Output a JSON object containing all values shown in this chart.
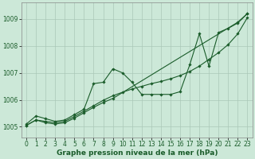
{
  "bg_color": "#cce8d8",
  "grid_color": "#aac8b8",
  "line_color": "#1a5c2a",
  "marker_color": "#1a5c2a",
  "xlabel": "Graphe pression niveau de la mer (hPa)",
  "xlabel_fontsize": 6.5,
  "tick_fontsize": 5.5,
  "xlim": [
    -0.5,
    23.5
  ],
  "ylim": [
    1004.6,
    1009.6
  ],
  "yticks": [
    1005,
    1006,
    1007,
    1008,
    1009
  ],
  "xticks": [
    0,
    1,
    2,
    3,
    4,
    5,
    6,
    7,
    8,
    9,
    10,
    11,
    12,
    13,
    14,
    15,
    16,
    17,
    18,
    19,
    20,
    21,
    22,
    23
  ],
  "series1_x": [
    0,
    1,
    2,
    3,
    4,
    5,
    6,
    7,
    8,
    9,
    10,
    11,
    12,
    13,
    14,
    15,
    16,
    17,
    18,
    19,
    20,
    21,
    22,
    23
  ],
  "series1_y": [
    1005.1,
    1005.4,
    1005.3,
    1005.2,
    1005.25,
    1005.45,
    1005.65,
    1006.6,
    1006.65,
    1007.15,
    1007.0,
    1006.65,
    1006.2,
    1006.2,
    1006.2,
    1006.2,
    1006.3,
    1007.3,
    1008.45,
    1007.25,
    1008.5,
    1008.65,
    1008.85,
    1009.2
  ],
  "series2_x": [
    0,
    1,
    2,
    3,
    4,
    5,
    6,
    7,
    8,
    9,
    10,
    11,
    12,
    13,
    14,
    15,
    16,
    17,
    18,
    19,
    20,
    21,
    22,
    23
  ],
  "series2_y": [
    1005.05,
    1005.25,
    1005.2,
    1005.15,
    1005.2,
    1005.38,
    1005.58,
    1005.78,
    1005.98,
    1006.15,
    1006.28,
    1006.4,
    1006.5,
    1006.6,
    1006.68,
    1006.78,
    1006.9,
    1007.05,
    1007.25,
    1007.5,
    1007.75,
    1008.05,
    1008.45,
    1009.05
  ],
  "series3_x": [
    0,
    1,
    2,
    3,
    4,
    5,
    6,
    7,
    8,
    9,
    22,
    23
  ],
  "series3_y": [
    1005.05,
    1005.25,
    1005.15,
    1005.1,
    1005.15,
    1005.32,
    1005.52,
    1005.72,
    1005.9,
    1006.05,
    1008.88,
    1009.2
  ]
}
